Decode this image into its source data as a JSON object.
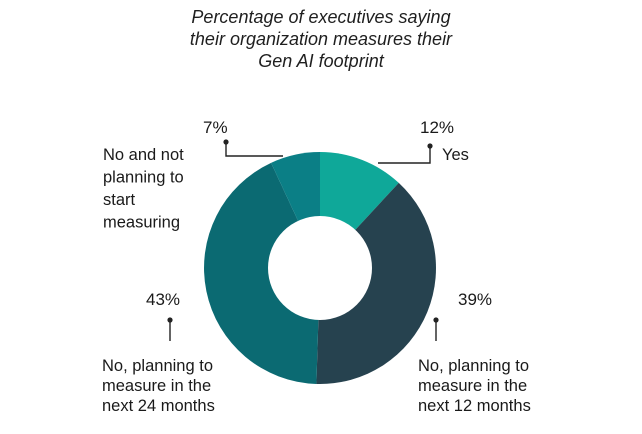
{
  "chart_data": {
    "type": "pie",
    "donut": true,
    "title_lines": [
      "Percentage of executives saying",
      "their organization measures their",
      "Gen AI footprint"
    ],
    "slices": [
      {
        "id": "yes",
        "name": "Yes",
        "value": 12,
        "value_label": "12%",
        "label_lines": [
          "Yes"
        ],
        "color": "#0fa899"
      },
      {
        "id": "12m",
        "name": "No, planning to measure in the next 12 months",
        "value": 39,
        "value_label": "39%",
        "label_lines": [
          "No, planning to",
          "measure in the",
          "next 12 months"
        ],
        "color": "#26424f"
      },
      {
        "id": "24m",
        "name": "No, planning to measure in the next 24 months",
        "value": 43,
        "value_label": "43%",
        "label_lines": [
          "No, planning to",
          "measure in the",
          "next 24 months"
        ],
        "color": "#0b6a72"
      },
      {
        "id": "not",
        "name": "No and not planning to start measuring",
        "value": 7,
        "value_label": "7%",
        "label_lines": [
          "No and not",
          "planning to",
          "start",
          "measuring"
        ],
        "color": "#0b7f86"
      }
    ]
  }
}
